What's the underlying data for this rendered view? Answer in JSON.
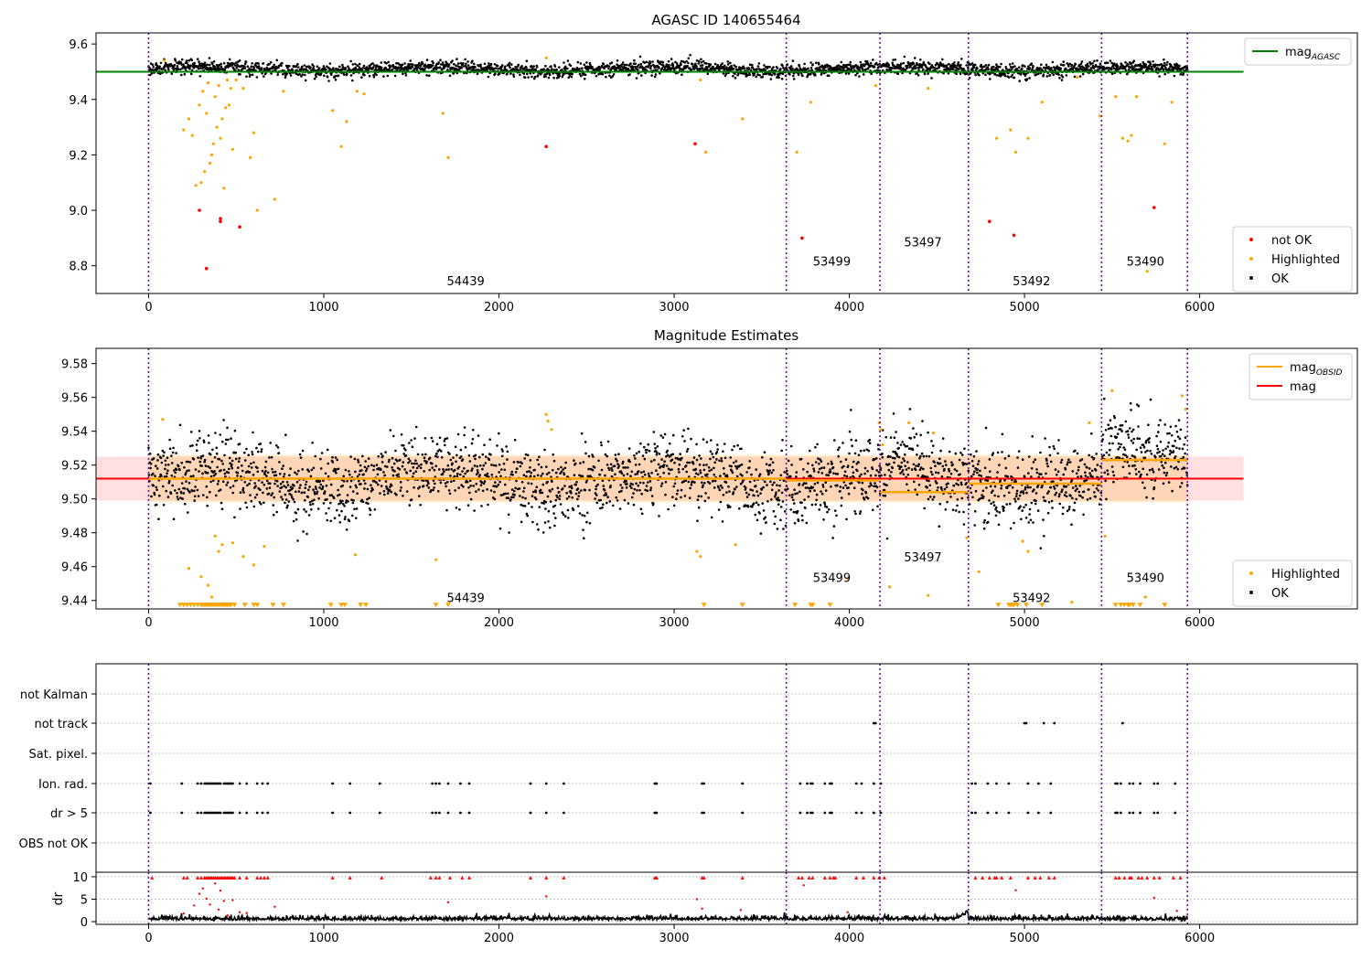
{
  "chart_data": [
    {
      "id": "mag-vs-sample",
      "type": "scatter",
      "title": "AGASC ID 140655464",
      "xlim": [
        -300,
        6900
      ],
      "ylim": [
        8.7,
        9.64
      ],
      "xticks": [
        0,
        1000,
        2000,
        3000,
        4000,
        5000,
        6000
      ],
      "yticks": [
        8.8,
        9.0,
        9.2,
        9.4,
        9.6
      ],
      "ytick_labels": [
        "8.8",
        "9.0",
        "9.2",
        "9.4",
        "9.6"
      ],
      "grid": false,
      "legend_upper": {
        "placement": "top-right",
        "entries": [
          {
            "label": "mag",
            "subscript": "AGASC",
            "color": "#008000",
            "kind": "line"
          }
        ]
      },
      "legend_lower": {
        "placement": "bottom-right",
        "entries": [
          {
            "label": "not OK",
            "color": "#ff0000",
            "kind": "dot"
          },
          {
            "label": "Highlighted",
            "color": "#ffa500",
            "kind": "dot"
          },
          {
            "label": "OK",
            "color": "#000000",
            "kind": "dot"
          }
        ]
      },
      "mag_agasc": {
        "value": 9.5,
        "x": [
          -300,
          6250
        ],
        "color": "#008000"
      },
      "ok_band": {
        "base": 9.51,
        "noise": 0.012,
        "x": [
          0,
          5930
        ]
      },
      "obsid_boundaries": [
        0,
        3640,
        4175,
        4680,
        5440,
        5930
      ],
      "obsid_labels": [
        {
          "text": "54439",
          "x": 1810,
          "y": 8.73
        },
        {
          "text": "53499",
          "x": 3900,
          "y": 8.8
        },
        {
          "text": "53497",
          "x": 4420,
          "y": 8.87
        },
        {
          "text": "53492",
          "x": 5040,
          "y": 8.73
        },
        {
          "text": "53490",
          "x": 5690,
          "y": 8.8
        }
      ],
      "not_ok_points": {
        "x": [
          290,
          330,
          410,
          410,
          520,
          2270,
          3120,
          3730,
          4800,
          4940,
          5740
        ],
        "y": [
          9.0,
          8.79,
          8.97,
          8.96,
          8.94,
          9.23,
          9.24,
          8.9,
          8.96,
          8.91,
          9.01
        ]
      },
      "highlighted_points": {
        "x": [
          90,
          200,
          230,
          250,
          270,
          290,
          300,
          310,
          320,
          330,
          340,
          350,
          360,
          370,
          380,
          390,
          400,
          410,
          420,
          430,
          440,
          450,
          460,
          470,
          480,
          500,
          540,
          580,
          600,
          620,
          720,
          770,
          1050,
          1100,
          1130,
          1190,
          1230,
          1680,
          1710,
          2270,
          3150,
          3180,
          3390,
          3700,
          3780,
          4150,
          4450,
          4840,
          4920,
          4950,
          5020,
          5100,
          5300,
          5430,
          5520,
          5560,
          5590,
          5610,
          5640,
          5700,
          5800,
          5840
        ],
        "y": [
          9.54,
          9.29,
          9.33,
          9.27,
          9.09,
          9.38,
          9.1,
          9.43,
          9.14,
          9.35,
          9.46,
          9.17,
          9.2,
          9.24,
          9.41,
          9.3,
          9.45,
          9.26,
          9.33,
          9.08,
          9.37,
          9.47,
          9.38,
          9.44,
          9.22,
          9.47,
          9.44,
          9.19,
          9.28,
          9.0,
          9.04,
          9.43,
          9.36,
          9.23,
          9.32,
          9.43,
          9.42,
          9.35,
          9.19,
          9.55,
          9.47,
          9.21,
          9.33,
          9.21,
          9.39,
          9.45,
          9.44,
          9.26,
          9.29,
          9.21,
          9.26,
          9.39,
          9.48,
          9.34,
          9.41,
          9.26,
          9.25,
          9.27,
          9.41,
          8.78,
          9.24,
          9.39
        ]
      }
    },
    {
      "id": "mag-estimates",
      "type": "scatter",
      "title": "Magnitude Estimates",
      "xlim": [
        -300,
        6900
      ],
      "ylim": [
        9.435,
        9.589
      ],
      "xticks": [
        0,
        1000,
        2000,
        3000,
        4000,
        5000,
        6000
      ],
      "yticks": [
        9.44,
        9.46,
        9.48,
        9.5,
        9.52,
        9.54,
        9.56,
        9.58
      ],
      "ytick_labels": [
        "9.44",
        "9.46",
        "9.48",
        "9.50",
        "9.52",
        "9.54",
        "9.56",
        "9.58"
      ],
      "grid": false,
      "legend_upper": {
        "placement": "top-right",
        "entries": [
          {
            "label": "mag",
            "subscript": "OBSID",
            "color": "#ffa500",
            "kind": "line"
          },
          {
            "label": "mag",
            "subscript": "",
            "color": "#ff0000",
            "kind": "line"
          }
        ]
      },
      "legend_lower": {
        "placement": "bottom-right",
        "entries": [
          {
            "label": "Highlighted",
            "color": "#ffa500",
            "kind": "dot"
          },
          {
            "label": "OK",
            "color": "#000000",
            "kind": "dot"
          }
        ]
      },
      "mag_mean": {
        "value": 9.512,
        "x": [
          -300,
          6250
        ],
        "color": "#ff0000"
      },
      "mag_band": {
        "y": [
          9.499,
          9.525
        ],
        "x": [
          -300,
          6250
        ]
      },
      "obsid_band": {
        "y": [
          9.498,
          9.526
        ],
        "x": [
          0,
          5930
        ]
      },
      "mag_obsid": [
        {
          "x": [
            0,
            3640
          ],
          "y": 9.512
        },
        {
          "x": [
            3640,
            4175
          ],
          "y": 9.511
        },
        {
          "x": [
            4175,
            4680
          ],
          "y": 9.504
        },
        {
          "x": [
            4680,
            5440
          ],
          "y": 9.509
        },
        {
          "x": [
            5440,
            5930
          ],
          "y": 9.523
        }
      ],
      "ok_band": {
        "base": 9.512,
        "noise": 0.011,
        "x": [
          0,
          5930
        ]
      },
      "obsid_boundaries": [
        0,
        3640,
        4175,
        4680,
        5440,
        5930
      ],
      "obsid_labels": [
        {
          "text": "54439",
          "x": 1810,
          "y": 9.439
        },
        {
          "text": "53499",
          "x": 3900,
          "y": 9.451
        },
        {
          "text": "53497",
          "x": 4420,
          "y": 9.463
        },
        {
          "text": "53492",
          "x": 5040,
          "y": 9.439
        },
        {
          "text": "53490",
          "x": 5690,
          "y": 9.451
        }
      ],
      "highlighted_points": {
        "x": [
          80,
          230,
          300,
          340,
          360,
          380,
          400,
          420,
          480,
          540,
          600,
          660,
          1180,
          1640,
          2270,
          2280,
          2300,
          3130,
          3150,
          3350,
          3990,
          4170,
          4180,
          4190,
          4230,
          4340,
          4450,
          4480,
          4670,
          4740,
          4990,
          5020,
          5270,
          5370,
          5460,
          5500,
          5690,
          5900,
          5920
        ],
        "y": [
          9.547,
          9.459,
          9.454,
          9.449,
          9.442,
          9.478,
          9.469,
          9.473,
          9.474,
          9.466,
          9.461,
          9.472,
          9.467,
          9.464,
          9.55,
          9.546,
          9.541,
          9.469,
          9.466,
          9.473,
          9.453,
          9.545,
          9.541,
          9.532,
          9.448,
          9.545,
          9.443,
          9.539,
          9.477,
          9.457,
          9.475,
          9.469,
          9.439,
          9.545,
          9.478,
          9.564,
          9.442,
          9.561,
          9.553
        ]
      },
      "floor_markers": {
        "y": 9.437,
        "x": [
          180,
          200,
          220,
          240,
          260,
          280,
          300,
          310,
          320,
          330,
          340,
          350,
          360,
          370,
          380,
          390,
          400,
          410,
          420,
          430,
          440,
          450,
          460,
          470,
          490,
          550,
          600,
          620,
          710,
          770,
          1040,
          1100,
          1120,
          1210,
          1240,
          1640,
          1710,
          3170,
          3390,
          3690,
          3780,
          3790,
          3890,
          4850,
          4910,
          4920,
          4930,
          4940,
          4960,
          5010,
          5100,
          5520,
          5550,
          5570,
          5590,
          5600,
          5620,
          5660,
          5800
        ]
      }
    },
    {
      "id": "flags",
      "type": "scatter",
      "xlim": [
        -300,
        6900
      ],
      "category_labels": [
        "not Kalman",
        "not track",
        "Sat. pixel.",
        "Ion. rad.",
        "dr > 5",
        "OBS not OK"
      ],
      "obsid_boundaries": [
        0,
        3640,
        4175,
        4680,
        5440,
        5930
      ],
      "flag_points": {
        "not track": [
          4140,
          4150,
          5000,
          5010,
          5110,
          5170,
          5560
        ],
        "Ion. rad.": [
          10,
          190,
          280,
          300,
          320,
          330,
          340,
          350,
          360,
          370,
          380,
          390,
          400,
          410,
          430,
          440,
          450,
          460,
          470,
          480,
          520,
          560,
          620,
          650,
          680,
          1050,
          1150,
          1320,
          1620,
          1640,
          1660,
          1710,
          1780,
          1830,
          2180,
          2270,
          2370,
          2890,
          2900,
          3160,
          3170,
          3390,
          3720,
          3760,
          3780,
          3790,
          3860,
          3890,
          3900,
          4040,
          4070,
          4140,
          4180,
          4700,
          4720,
          4790,
          4840,
          4910,
          5020,
          5080,
          5150,
          5520,
          5530,
          5550,
          5600,
          5620,
          5660,
          5740,
          5760,
          5860
        ],
        "dr > 5": [
          10,
          190,
          280,
          300,
          320,
          330,
          340,
          350,
          360,
          370,
          380,
          390,
          400,
          410,
          430,
          440,
          450,
          460,
          470,
          480,
          520,
          560,
          620,
          650,
          680,
          1050,
          1150,
          1320,
          1620,
          1640,
          1660,
          1710,
          1780,
          1830,
          2180,
          2270,
          2370,
          2890,
          2900,
          3160,
          3170,
          3390,
          3720,
          3760,
          3780,
          3790,
          3860,
          3890,
          3900,
          4040,
          4070,
          4140,
          4180,
          4700,
          4720,
          4790,
          4840,
          4910,
          5020,
          5080,
          5150,
          5520,
          5530,
          5550,
          5600,
          5620,
          5660,
          5740,
          5760,
          5860
        ]
      }
    },
    {
      "id": "dr",
      "type": "scatter",
      "xlim": [
        -300,
        6900
      ],
      "ylim": [
        -0.6,
        11
      ],
      "xticks": [
        0,
        1000,
        2000,
        3000,
        4000,
        5000,
        6000
      ],
      "yticks": [
        0,
        5,
        10
      ],
      "ytick_labels": [
        "0",
        "5",
        "10"
      ],
      "ylabel": "dr",
      "obsid_boundaries": [
        0,
        3640,
        4175,
        4680,
        5440,
        5930
      ],
      "clipped_markers": {
        "y": 9.8,
        "x": [
          20,
          200,
          220,
          280,
          300,
          320,
          330,
          340,
          350,
          360,
          370,
          380,
          390,
          400,
          410,
          420,
          430,
          440,
          450,
          460,
          470,
          480,
          490,
          520,
          560,
          620,
          640,
          660,
          680,
          1050,
          1150,
          1330,
          1610,
          1640,
          1660,
          1720,
          1790,
          1830,
          2180,
          2270,
          2370,
          2890,
          2900,
          3160,
          3170,
          3390,
          3710,
          3730,
          3770,
          3790,
          3860,
          3890,
          3910,
          3920,
          4040,
          4080,
          4140,
          4170,
          4200,
          4720,
          4760,
          4800,
          4830,
          4840,
          4870,
          4920,
          5020,
          5060,
          5090,
          5140,
          5170,
          5520,
          5540,
          5570,
          5600,
          5610,
          5650,
          5670,
          5700,
          5740,
          5770,
          5850,
          5890
        ]
      },
      "mid_points": {
        "x": [
          200,
          260,
          290,
          310,
          330,
          350,
          380,
          400,
          410,
          430,
          450,
          480,
          520,
          560,
          720,
          1710,
          2270,
          3130,
          3160,
          3380,
          3740,
          3990,
          4950,
          5740,
          5870
        ],
        "y": [
          1.8,
          3.6,
          6.2,
          7.4,
          5.1,
          3.8,
          8.5,
          2.7,
          6.9,
          4.6,
          1.4,
          4.8,
          2.1,
          1.9,
          3.3,
          4.3,
          5.6,
          5.0,
          2.9,
          2.6,
          8.1,
          2.1,
          7.0,
          5.3,
          2.4
        ]
      },
      "baseline": {
        "mean": 0.35,
        "noise": 0.45,
        "x": [
          0,
          5930
        ]
      }
    }
  ]
}
